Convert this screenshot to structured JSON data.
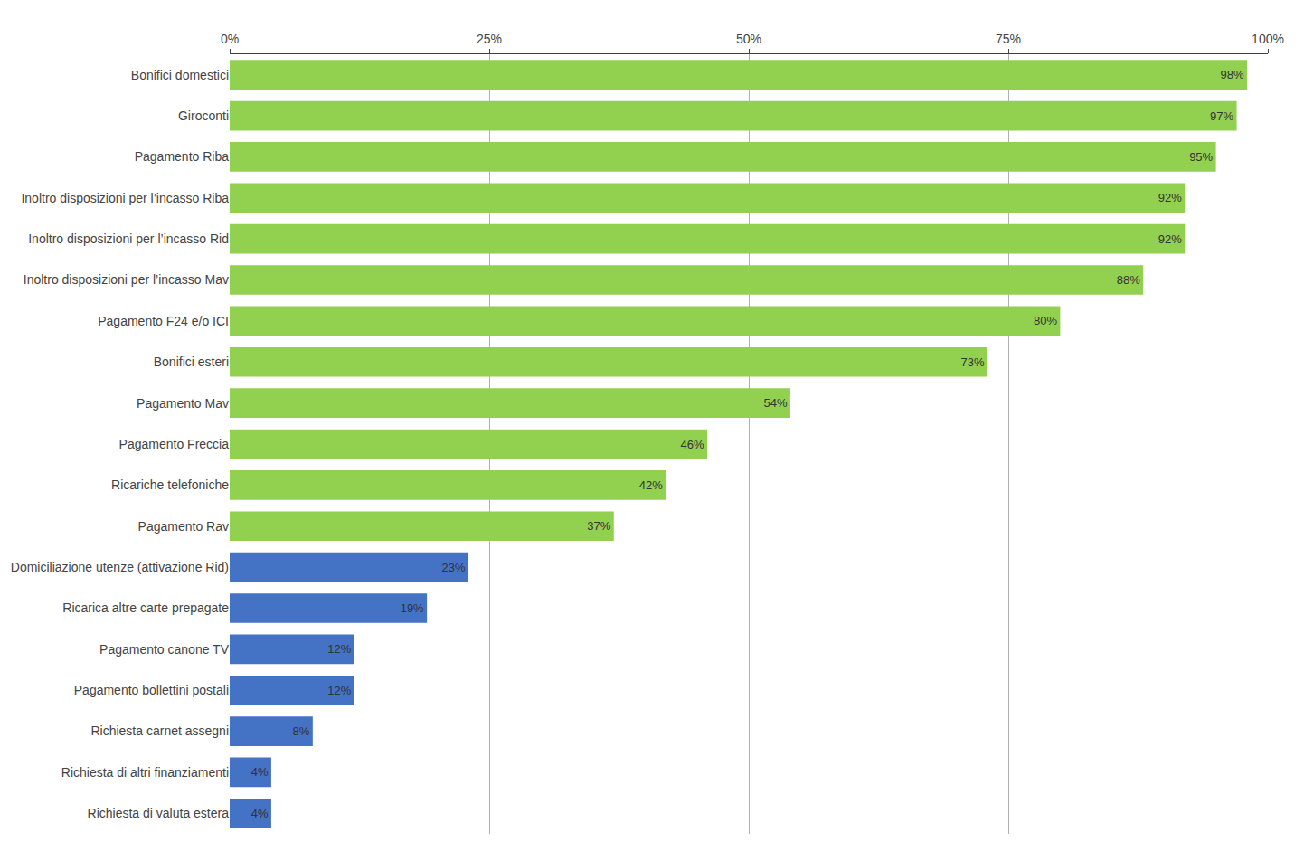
{
  "chart_data": {
    "type": "bar",
    "orientation": "horizontal",
    "categories": [
      "Bonifici domestici",
      "Giroconti",
      "Pagamento Riba",
      "Inoltro disposizioni per l’incasso Riba",
      "Inoltro disposizioni per l’incasso Rid",
      "Inoltro disposizioni per l’incasso Mav",
      "Pagamento F24 e/o ICI",
      "Bonifici esteri",
      "Pagamento Mav",
      "Pagamento Freccia",
      "Ricariche telefoniche",
      "Pagamento Rav",
      "Domiciliazione utenze (attivazione Rid)",
      "Ricarica altre carte prepagate",
      "Pagamento canone TV",
      "Pagamento bollettini postali",
      "Richiesta carnet assegni",
      "Richiesta di altri finanziamenti",
      "Richiesta di valuta estera"
    ],
    "values": [
      98,
      97,
      95,
      92,
      92,
      88,
      80,
      73,
      54,
      46,
      42,
      37,
      23,
      19,
      12,
      12,
      8,
      4,
      4
    ],
    "value_labels": [
      "98%",
      "97%",
      "95%",
      "92%",
      "92%",
      "88%",
      "80%",
      "73%",
      "54%",
      "46%",
      "42%",
      "37%",
      "23%",
      "19%",
      "12%",
      "12%",
      "8%",
      "4%",
      "4%"
    ],
    "data_labels": true,
    "colors": [
      "#92d050",
      "#92d050",
      "#92d050",
      "#92d050",
      "#92d050",
      "#92d050",
      "#92d050",
      "#92d050",
      "#92d050",
      "#92d050",
      "#92d050",
      "#92d050",
      "#4472c4",
      "#4472c4",
      "#4472c4",
      "#4472c4",
      "#4472c4",
      "#4472c4",
      "#4472c4"
    ],
    "xlim": [
      0,
      100
    ],
    "xticks": [
      {
        "value": 0,
        "label": "0%"
      },
      {
        "value": 25,
        "label": "25%"
      },
      {
        "value": 50,
        "label": "50%"
      },
      {
        "value": 75,
        "label": "75%"
      },
      {
        "value": 100,
        "label": "100%"
      }
    ],
    "grid": true
  }
}
